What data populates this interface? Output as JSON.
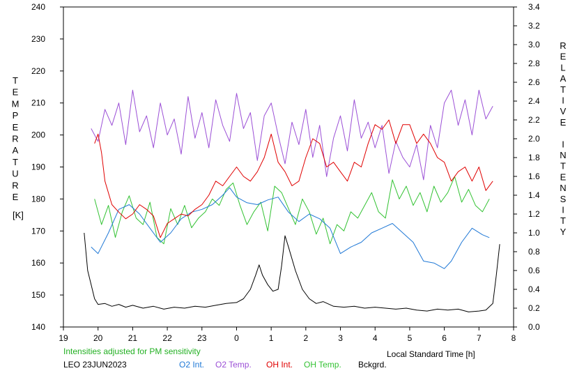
{
  "chart_data": {
    "type": "line",
    "note_text": "Intensities adjusted for PM sensitivity",
    "site_date": "LEO 23JUN2023",
    "xlabel": "Local Standard Time [h]",
    "y_left_label": "TEMPERATURE",
    "y_left_unit": "[K]",
    "y_right_label": "RELATIVE INTENSITY",
    "x_ticks": [
      "19",
      "20",
      "21",
      "22",
      "23",
      "0",
      "1",
      "2",
      "3",
      "4",
      "5",
      "6",
      "7",
      "8"
    ],
    "xlim": [
      19,
      32
    ],
    "y_left_ticks": [
      "140",
      "150",
      "160",
      "170",
      "180",
      "190",
      "200",
      "210",
      "220",
      "230",
      "240"
    ],
    "ylim_left": [
      140,
      240
    ],
    "y_right_ticks": [
      "0.0",
      "0.2",
      "0.4",
      "0.6",
      "0.8",
      "1.0",
      "1.2",
      "1.4",
      "1.6",
      "1.8",
      "2.0",
      "2.2",
      "2.4",
      "2.6",
      "2.8",
      "3.0",
      "3.2",
      "3.4"
    ],
    "ylim_right": [
      0,
      3.4
    ],
    "colors": {
      "o2_int": "#1f78d6",
      "o2_temp": "#9b4fd6",
      "oh_int": "#e00000",
      "oh_temp": "#33c233",
      "bckgrd": "#000000",
      "note": "#22b022"
    },
    "series": [
      {
        "name": "O2 Int.",
        "axis": "right",
        "color": "#1f78d6",
        "x": [
          19.8,
          20.0,
          20.3,
          20.6,
          20.9,
          21.2,
          21.5,
          21.8,
          22.1,
          22.4,
          22.7,
          23.0,
          23.3,
          23.6,
          23.8,
          24.0,
          24.3,
          24.6,
          24.9,
          25.2,
          25.5,
          25.8,
          26.1,
          26.4,
          26.7,
          27.0,
          27.3,
          27.6,
          27.9,
          28.2,
          28.5,
          28.8,
          29.1,
          29.4,
          29.7,
          30.0,
          30.2,
          30.5,
          30.8,
          31.1,
          31.3
        ],
        "y": [
          0.85,
          0.78,
          1.0,
          1.25,
          1.3,
          1.2,
          1.05,
          0.9,
          1.0,
          1.15,
          1.22,
          1.25,
          1.3,
          1.4,
          1.48,
          1.38,
          1.32,
          1.3,
          1.35,
          1.38,
          1.22,
          1.12,
          1.2,
          1.15,
          1.05,
          0.78,
          0.85,
          0.9,
          1.0,
          1.05,
          1.1,
          1.0,
          0.9,
          0.7,
          0.68,
          0.62,
          0.7,
          0.9,
          1.05,
          0.98,
          0.95
        ]
      },
      {
        "name": "O2 Temp.",
        "axis": "left",
        "color": "#9b4fd6",
        "x": [
          19.8,
          20.0,
          20.2,
          20.4,
          20.6,
          20.8,
          21.0,
          21.2,
          21.4,
          21.6,
          21.8,
          22.0,
          22.2,
          22.4,
          22.6,
          22.8,
          23.0,
          23.2,
          23.4,
          23.6,
          23.8,
          24.0,
          24.2,
          24.4,
          24.6,
          24.8,
          25.0,
          25.2,
          25.4,
          25.6,
          25.8,
          26.0,
          26.2,
          26.4,
          26.6,
          26.8,
          27.0,
          27.2,
          27.4,
          27.6,
          27.8,
          28.0,
          28.2,
          28.4,
          28.6,
          28.8,
          29.0,
          29.2,
          29.4,
          29.6,
          29.8,
          30.0,
          30.2,
          30.4,
          30.6,
          30.8,
          31.0,
          31.2,
          31.4
        ],
        "y": [
          202,
          198,
          208,
          203,
          210,
          197,
          214,
          201,
          206,
          196,
          210,
          200,
          205,
          194,
          212,
          199,
          207,
          196,
          211,
          203,
          198,
          213,
          202,
          207,
          192,
          206,
          210,
          200,
          191,
          204,
          197,
          208,
          193,
          203,
          187,
          199,
          206,
          195,
          211,
          199,
          204,
          196,
          203,
          188,
          198,
          193,
          190,
          197,
          186,
          203,
          196,
          210,
          214,
          203,
          211,
          200,
          214,
          205,
          209
        ]
      },
      {
        "name": "OH Int.",
        "axis": "right",
        "color": "#e00000",
        "x": [
          19.9,
          20.0,
          20.1,
          20.2,
          20.4,
          20.6,
          20.8,
          21.0,
          21.2,
          21.4,
          21.6,
          21.8,
          22.0,
          22.2,
          22.4,
          22.6,
          22.8,
          23.0,
          23.2,
          23.4,
          23.6,
          23.8,
          24.0,
          24.2,
          24.4,
          24.6,
          24.8,
          25.0,
          25.2,
          25.4,
          25.6,
          25.8,
          26.0,
          26.2,
          26.4,
          26.6,
          26.8,
          27.0,
          27.2,
          27.4,
          27.6,
          27.8,
          28.0,
          28.2,
          28.4,
          28.6,
          28.8,
          29.0,
          29.2,
          29.4,
          29.6,
          29.8,
          30.0,
          30.2,
          30.4,
          30.6,
          30.8,
          31.0,
          31.2,
          31.4
        ],
        "y": [
          1.95,
          2.05,
          1.85,
          1.55,
          1.3,
          1.22,
          1.15,
          1.2,
          1.3,
          1.25,
          1.18,
          0.95,
          1.1,
          1.15,
          1.2,
          1.18,
          1.25,
          1.3,
          1.4,
          1.55,
          1.5,
          1.6,
          1.7,
          1.6,
          1.55,
          1.65,
          1.8,
          2.05,
          1.75,
          1.65,
          1.5,
          1.55,
          1.8,
          2.0,
          1.95,
          1.7,
          1.75,
          1.65,
          1.55,
          1.75,
          1.7,
          1.95,
          2.15,
          2.1,
          2.2,
          1.95,
          2.15,
          2.15,
          1.95,
          2.05,
          1.95,
          1.8,
          1.75,
          1.55,
          1.65,
          1.7,
          1.55,
          1.7,
          1.45,
          1.55
        ]
      },
      {
        "name": "OH Temp.",
        "axis": "left",
        "color": "#33c233",
        "x": [
          19.9,
          20.1,
          20.3,
          20.5,
          20.7,
          20.9,
          21.1,
          21.3,
          21.5,
          21.7,
          21.9,
          22.1,
          22.3,
          22.5,
          22.7,
          22.9,
          23.1,
          23.3,
          23.5,
          23.7,
          23.9,
          24.1,
          24.3,
          24.5,
          24.7,
          24.9,
          25.1,
          25.3,
          25.5,
          25.7,
          25.9,
          26.1,
          26.3,
          26.5,
          26.7,
          26.9,
          27.1,
          27.3,
          27.5,
          27.7,
          27.9,
          28.1,
          28.3,
          28.5,
          28.7,
          28.9,
          29.1,
          29.3,
          29.5,
          29.7,
          29.9,
          30.1,
          30.3,
          30.5,
          30.7,
          30.9,
          31.1,
          31.3
        ],
        "y": [
          180,
          172,
          178,
          168,
          176,
          181,
          174,
          172,
          179,
          168,
          166,
          177,
          172,
          178,
          171,
          174,
          176,
          180,
          178,
          183,
          185,
          178,
          172,
          176,
          179,
          170,
          184,
          182,
          177,
          172,
          180,
          176,
          169,
          174,
          166,
          172,
          170,
          176,
          174,
          178,
          182,
          176,
          174,
          186,
          180,
          184,
          178,
          182,
          176,
          184,
          179,
          182,
          187,
          179,
          183,
          178,
          176,
          180
        ]
      },
      {
        "name": "Bckgrd.",
        "axis": "right",
        "color": "#000000",
        "x": [
          19.6,
          19.7,
          19.8,
          19.9,
          20.0,
          20.2,
          20.4,
          20.6,
          20.8,
          21.0,
          21.3,
          21.6,
          21.9,
          22.2,
          22.5,
          22.8,
          23.1,
          23.4,
          23.7,
          24.0,
          24.2,
          24.4,
          24.55,
          24.65,
          24.75,
          24.9,
          25.05,
          25.2,
          25.3,
          25.4,
          25.5,
          25.7,
          25.9,
          26.1,
          26.3,
          26.5,
          26.8,
          27.1,
          27.4,
          27.7,
          28.0,
          28.3,
          28.6,
          28.9,
          29.2,
          29.5,
          29.8,
          30.1,
          30.4,
          30.7,
          31.0,
          31.2,
          31.4,
          31.5,
          31.6
        ],
        "y": [
          1.0,
          0.6,
          0.45,
          0.3,
          0.24,
          0.25,
          0.22,
          0.24,
          0.21,
          0.23,
          0.2,
          0.22,
          0.19,
          0.21,
          0.2,
          0.22,
          0.21,
          0.23,
          0.25,
          0.26,
          0.3,
          0.4,
          0.55,
          0.66,
          0.55,
          0.45,
          0.38,
          0.4,
          0.65,
          0.97,
          0.85,
          0.6,
          0.4,
          0.3,
          0.25,
          0.27,
          0.22,
          0.21,
          0.22,
          0.2,
          0.21,
          0.2,
          0.19,
          0.2,
          0.18,
          0.17,
          0.19,
          0.18,
          0.19,
          0.16,
          0.17,
          0.18,
          0.25,
          0.55,
          0.88
        ]
      }
    ]
  }
}
